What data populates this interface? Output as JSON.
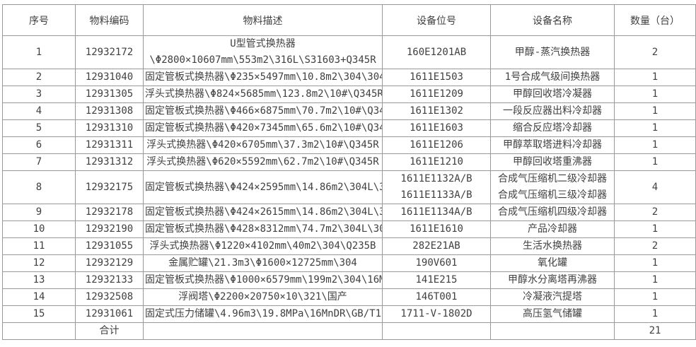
{
  "table": {
    "headers": [
      "序号",
      "物料编码",
      "物料描述",
      "设备位号",
      "设备名称",
      "数量（台）"
    ],
    "rows": [
      {
        "seq": "1",
        "code": "12932172",
        "desc": [
          "U型管式换热器",
          "\\Φ2800×10607mm\\553m2\\316L\\S31603+Q345R"
        ],
        "tag": "160E1201AB",
        "name": "甲醇-蒸汽换热器",
        "qty": "2"
      },
      {
        "seq": "2",
        "code": "12931040",
        "desc": "固定管板式换热器\\Φ235×5497mm\\10.8m2\\304\\304",
        "tag": "1611E1503",
        "name": "1号合成气级间换热器",
        "qty": "1"
      },
      {
        "seq": "3",
        "code": "12931305",
        "desc": "浮头式换热器\\Φ824×5685mm\\123.8m2\\10#\\Q345R",
        "tag": "1611E1209",
        "name": "甲醇回收塔冷凝器",
        "qty": "1"
      },
      {
        "seq": "4",
        "code": "12931308",
        "desc": "固定管板式换热器\\Φ466×6875mm\\70.7m2\\10#\\Q345R",
        "tag": "1611E1302",
        "name": "一段反应器出料冷却器",
        "qty": "1"
      },
      {
        "seq": "5",
        "code": "12931310",
        "desc": "固定管板式换热器\\Φ420×7345mm\\65.6m2\\10#\\Q345R",
        "tag": "1611E1603",
        "name": "缩合反应塔冷却器",
        "qty": "1"
      },
      {
        "seq": "6",
        "code": "12931311",
        "desc": "浮头式换热器\\Φ420×6705mm\\37.3m2\\10#\\Q345R",
        "tag": "1611E1206",
        "name": "甲醇萃取塔进料冷却器",
        "qty": "1"
      },
      {
        "seq": "7",
        "code": "12931312",
        "desc": "浮头式换热器\\Φ620×5592mm\\62.7m2\\10#\\Q345R",
        "tag": "1611E1210",
        "name": "甲醇回收塔重沸器",
        "qty": "1"
      },
      {
        "seq": "8",
        "code": "12932175",
        "desc": "固定管板式换热器\\Φ424×2595mm\\14.86m2\\304L\\304L",
        "tag": [
          "1611E1132A/B",
          "1611E1133A/B"
        ],
        "name": [
          "合成气压缩机二级冷却器",
          "合成气压缩机三级冷却器"
        ],
        "qty": "4"
      },
      {
        "seq": "9",
        "code": "12932178",
        "desc": "固定管板式换热器\\Φ424×2615mm\\14.86m2\\304L\\304L",
        "tag": "1611E1134A/B",
        "name": "合成气压缩机四级冷却器",
        "qty": "2"
      },
      {
        "seq": "10",
        "code": "12932190",
        "desc": "固定管板式换热器\\Φ428×8312mm\\74.7m2\\304L\\304L",
        "tag": "1611E1610",
        "name": "产品冷却器",
        "qty": "1"
      },
      {
        "seq": "11",
        "code": "12931055",
        "desc": "浮头式换热器\\Φ1220×4102mm\\40m2\\304\\Q235B",
        "tag": "282E21AB",
        "name": "生活水换热器",
        "qty": "2"
      },
      {
        "seq": "12",
        "code": "12932129",
        "desc": "金属贮罐\\21.3m3\\Φ1600×12725mm\\304",
        "tag": "190V601",
        "name": "氧化罐",
        "qty": "1"
      },
      {
        "seq": "13",
        "code": "12932133",
        "desc": "固定管板式换热器\\Φ1000×6579mm\\199m2\\304\\16Mn",
        "tag": "141E215",
        "name": "甲醇水分离塔再沸器",
        "qty": "1"
      },
      {
        "seq": "14",
        "code": "12932508",
        "desc": "浮阀塔\\Φ2200×20750×10\\321\\国产",
        "tag": "146T001",
        "name": "冷凝液汽提塔",
        "qty": "1"
      },
      {
        "seq": "15",
        "code": "12931061",
        "desc": "固定式压力储罐\\4.96m3\\19.8MPa\\16MnDR\\GB/T150",
        "tag": "1711-V-1802D",
        "name": "高压氢气储罐",
        "qty": "1"
      }
    ],
    "total_row": {
      "label": "合计",
      "quantity": "21"
    }
  }
}
